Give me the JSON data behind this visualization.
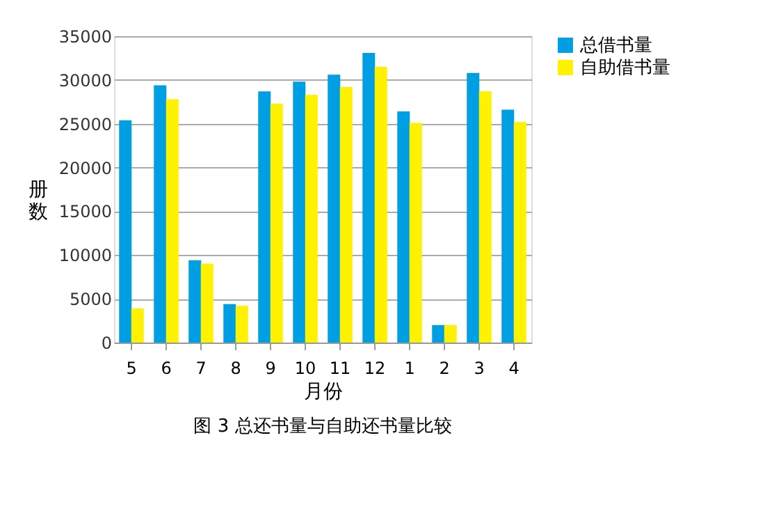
{
  "chart_data": {
    "type": "bar",
    "categories": [
      "5",
      "6",
      "7",
      "8",
      "9",
      "10",
      "11",
      "12",
      "1",
      "2",
      "3",
      "4"
    ],
    "series": [
      {
        "name": "总借书量",
        "color": "#009fe3",
        "values": [
          25400,
          29400,
          9400,
          4400,
          28700,
          29800,
          30600,
          33100,
          26400,
          2000,
          30800,
          26600
        ]
      },
      {
        "name": "自助借书量",
        "color": "#fff200",
        "values": [
          3900,
          27800,
          9000,
          4200,
          27300,
          28300,
          29200,
          31500,
          25100,
          2000,
          28700,
          25200
        ]
      }
    ],
    "xlabel": "月份",
    "ylabel": "册数",
    "ylim": [
      0,
      35000
    ],
    "yticks": [
      0,
      5000,
      10000,
      15000,
      20000,
      25000,
      30000,
      35000
    ],
    "grid": "y",
    "legend": "right",
    "annotations": [
      "图 3 总还书量与自助还书量比较"
    ]
  }
}
